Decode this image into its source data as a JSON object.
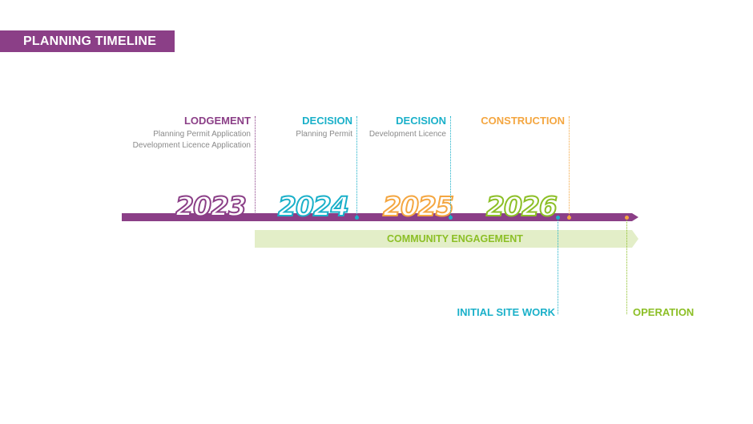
{
  "title": "PLANNING TIMELINE",
  "colors": {
    "purple": "#8b3f87",
    "teal": "#1ab0c9",
    "orange": "#f4a640",
    "green": "#8cbf26",
    "engagement_fill": "#e3eec8",
    "grey_text": "#8a8a8a"
  },
  "milestones_above": [
    {
      "label": "LODGEMENT",
      "details": [
        "Planning Permit Application",
        "Development Licence Application"
      ]
    },
    {
      "label": "DECISION",
      "details": [
        "Planning Permit"
      ]
    },
    {
      "label": "DECISION",
      "details": [
        "Development Licence"
      ]
    },
    {
      "label": "CONSTRUCTION",
      "details": []
    }
  ],
  "years": [
    "2023",
    "2024",
    "2025",
    "2026"
  ],
  "community_engagement": "COMMUNITY ENGAGEMENT",
  "milestones_below": [
    {
      "label": "INITIAL SITE WORK"
    },
    {
      "label": "OPERATION"
    }
  ]
}
